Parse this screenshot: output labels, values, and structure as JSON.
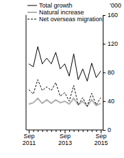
{
  "chart_data": {
    "type": "line",
    "ylabel": "'000",
    "categories": [
      "Sep 2011",
      null,
      null,
      null,
      null,
      null,
      null,
      null,
      "Sep 2013",
      null,
      null,
      null,
      null,
      null,
      null,
      null,
      "Sep 2015"
    ],
    "series": [
      {
        "name": "Total growth",
        "color": "#000000",
        "line_style": "solid",
        "values": [
          92,
          88,
          116,
          92,
          100,
          92,
          108,
          85,
          92,
          75,
          106,
          70,
          85,
          68,
          93,
          73,
          82
        ]
      },
      {
        "name": "Natural increase",
        "color": "#b0b0b0",
        "line_style": "solid",
        "values": [
          36,
          38,
          44,
          37,
          42,
          37,
          42,
          38,
          40,
          36,
          44,
          35,
          40,
          33,
          42,
          34,
          37
        ]
      },
      {
        "name": "Net overseas migration",
        "color": "#000000",
        "line_style": "dashed",
        "values": [
          56,
          50,
          70,
          55,
          60,
          55,
          66,
          47,
          52,
          40,
          62,
          35,
          45,
          33,
          51,
          35,
          45
        ]
      }
    ],
    "ylim": [
      0,
      160
    ],
    "yticks": [
      0,
      40,
      80,
      120,
      160
    ],
    "legend": "top-left"
  }
}
